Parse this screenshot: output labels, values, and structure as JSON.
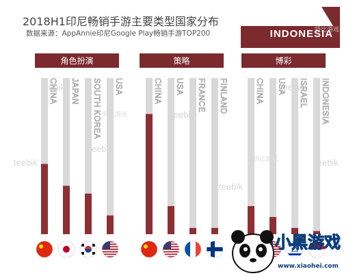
{
  "title": "2018H1印尼畅销手游主要类型国家分布",
  "subtitle": "数据来源：AppAnnie印尼Google Play畅销手游TOP200",
  "region_label": "INDONESIA",
  "watermark": "teebik",
  "watermark_cn": "特比游戏",
  "brand": {
    "logo_text": "小黑游戏",
    "url": "www.xiaohei.com"
  },
  "colors": {
    "bar": "#8e2f34",
    "track": "#d9d9d9",
    "header": "#7b2a2e"
  },
  "chart_data": [
    {
      "type": "bar",
      "title": "角色扮演",
      "categories": [
        "CHINA",
        "JAPAN",
        "SOUTH KOREA",
        "USA"
      ],
      "values": [
        0.45,
        0.31,
        0.26,
        0.12
      ],
      "flags": [
        "china",
        "japan",
        "korea",
        "usa"
      ]
    },
    {
      "type": "bar",
      "title": "策略",
      "categories": [
        "CHINA",
        "USA",
        "FRANCE",
        "FINLAND"
      ],
      "values": [
        0.77,
        0.18,
        0.04,
        0.04
      ],
      "flags": [
        "china",
        "usa",
        "france",
        "finland"
      ]
    },
    {
      "type": "bar",
      "title": "博彩",
      "categories": [
        "CHINA",
        "USA",
        "ISRAEL",
        "INDONESIA"
      ],
      "values": [
        0.18,
        0.11,
        0.04,
        0.02
      ],
      "flags": [
        "china",
        "usa",
        "israel",
        "indonesia"
      ]
    }
  ]
}
